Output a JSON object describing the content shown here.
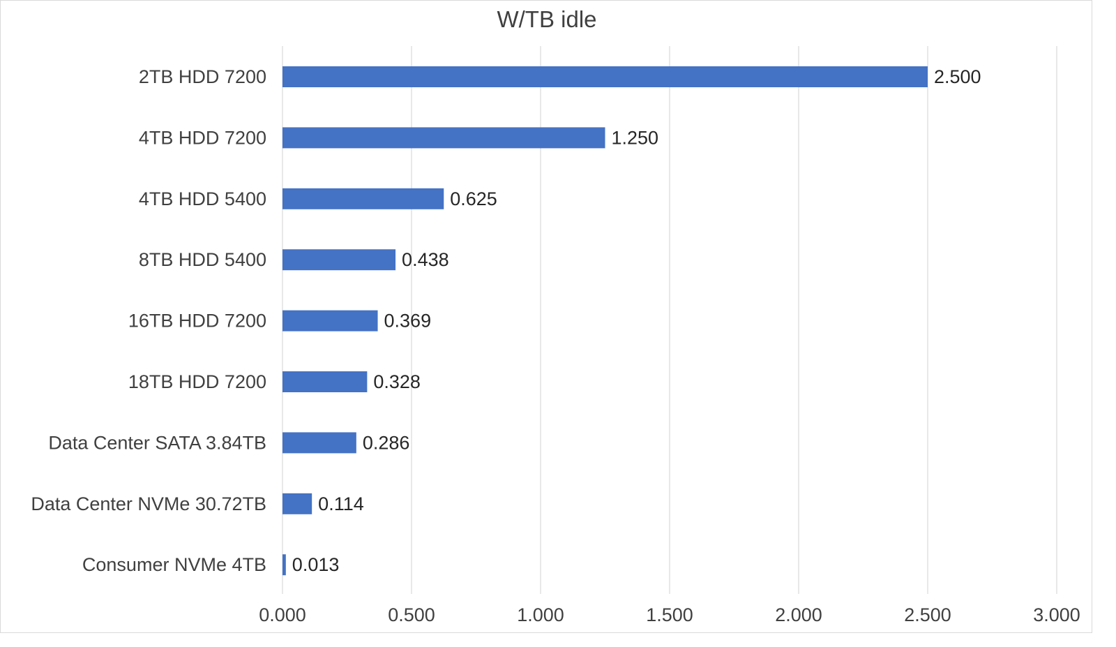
{
  "chart_data": {
    "type": "bar",
    "orientation": "horizontal",
    "title": "W/TB idle",
    "xlabel": "",
    "ylabel": "",
    "categories": [
      "2TB HDD 7200",
      "4TB HDD 7200",
      "4TB HDD 5400",
      "8TB HDD 5400",
      "16TB HDD 7200",
      "18TB HDD 7200",
      "Data Center SATA 3.84TB",
      "Data Center NVMe 30.72TB",
      "Consumer NVMe 4TB"
    ],
    "values": [
      2.5,
      1.25,
      0.625,
      0.438,
      0.369,
      0.328,
      0.286,
      0.114,
      0.013
    ],
    "value_labels": [
      "2.500",
      "1.250",
      "0.625",
      "0.438",
      "0.369",
      "0.328",
      "0.286",
      "0.114",
      "0.013"
    ],
    "xlim": [
      0,
      3
    ],
    "x_ticks": [
      0,
      0.5,
      1,
      1.5,
      2,
      2.5,
      3
    ],
    "x_tick_labels": [
      "0.000",
      "0.500",
      "1.000",
      "1.500",
      "2.000",
      "2.500",
      "3.000"
    ],
    "grid": true,
    "legend": "none",
    "bar_color": "#4472C4"
  }
}
